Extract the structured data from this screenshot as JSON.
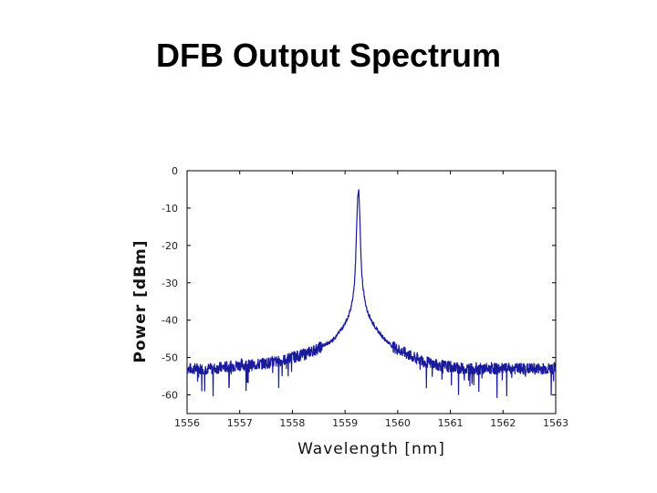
{
  "slide": {
    "title": "DFB Output Spectrum"
  },
  "chart_data": {
    "type": "line",
    "title": "",
    "xlabel": "Wavelength [nm]",
    "ylabel": "Power [dBm]",
    "xlim": [
      1556,
      1563
    ],
    "ylim": [
      -65,
      0
    ],
    "x_ticks": [
      1556,
      1557,
      1558,
      1559,
      1560,
      1561,
      1562,
      1563
    ],
    "x_tick_labels": [
      "1556",
      "1557",
      "1558",
      "1559",
      "1560",
      "1561",
      "1562",
      "1563"
    ],
    "y_ticks": [
      0,
      -10,
      -20,
      -30,
      -40,
      -50,
      -60
    ],
    "y_tick_labels": [
      "0",
      "-10",
      "-20",
      "-30",
      "-40",
      "-50",
      "-60"
    ],
    "grid": false,
    "line_color": "#1a1a9c",
    "series": [
      {
        "x": [
          1556.0,
          1556.25,
          1556.5,
          1556.75,
          1557.0,
          1557.25,
          1557.5,
          1557.75,
          1558.0,
          1558.25,
          1558.5,
          1558.7,
          1558.85,
          1558.95,
          1559.05,
          1559.1,
          1559.15,
          1559.18,
          1559.2,
          1559.22,
          1559.24,
          1559.26,
          1559.28,
          1559.3,
          1559.32,
          1559.34,
          1559.36,
          1559.38,
          1559.42,
          1559.5,
          1559.6,
          1559.75,
          1559.9,
          1560.1,
          1560.3,
          1560.5,
          1560.75,
          1561.0,
          1561.25,
          1561.5,
          1561.75,
          1562.0,
          1562.25,
          1562.5,
          1562.75,
          1563.0
        ],
        "y": [
          -53,
          -53,
          -53,
          -52.5,
          -52,
          -52,
          -51.5,
          -51,
          -50,
          -49,
          -47.5,
          -46,
          -44,
          -42,
          -39.5,
          -37.5,
          -34,
          -30,
          -24,
          -15,
          -7,
          -5,
          -12,
          -22,
          -28,
          -31,
          -33,
          -35,
          -37.5,
          -40,
          -42.5,
          -45,
          -47,
          -48.5,
          -50,
          -51,
          -52,
          -52.5,
          -53,
          -53,
          -53,
          -53,
          -53,
          -53,
          -53,
          -53
        ]
      }
    ]
  }
}
